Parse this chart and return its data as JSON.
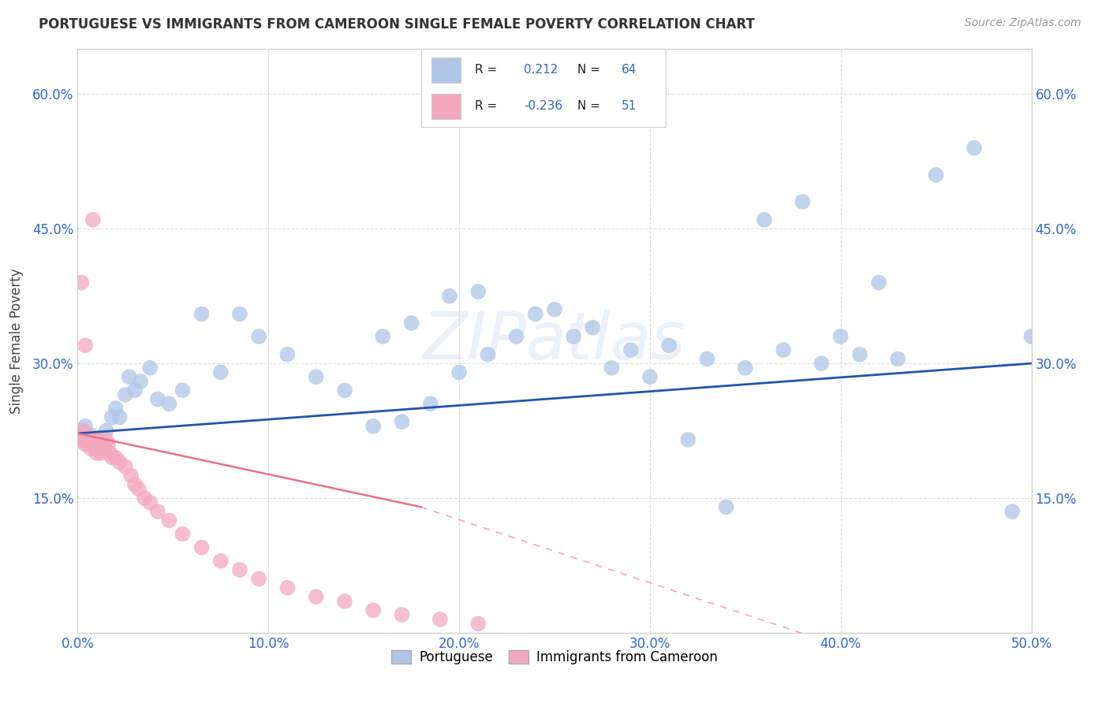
{
  "title": "PORTUGUESE VS IMMIGRANTS FROM CAMEROON SINGLE FEMALE POVERTY CORRELATION CHART",
  "source": "Source: ZipAtlas.com",
  "ylabel_label": "Single Female Poverty",
  "xlim": [
    0.0,
    0.5
  ],
  "ylim": [
    0.0,
    0.65
  ],
  "xticks": [
    0.0,
    0.1,
    0.2,
    0.3,
    0.4,
    0.5
  ],
  "yticks": [
    0.0,
    0.15,
    0.3,
    0.45,
    0.6
  ],
  "ytick_labels": [
    "",
    "15.0%",
    "30.0%",
    "45.0%",
    "60.0%"
  ],
  "xtick_labels": [
    "0.0%",
    "10.0%",
    "20.0%",
    "30.0%",
    "40.0%",
    "50.0%"
  ],
  "blue_color": "#aec6e8",
  "pink_color": "#f4a8c0",
  "line_blue": "#2255aa",
  "line_pink": "#e8708a",
  "portuguese_R": 0.212,
  "portuguese_N": 64,
  "cameroon_R": -0.236,
  "cameroon_N": 51,
  "legend_label1": "Portuguese",
  "legend_label2": "Immigrants from Cameroon",
  "watermark": "ZIPatlas",
  "portuguese_x": [
    0.001,
    0.002,
    0.003,
    0.004,
    0.005,
    0.006,
    0.007,
    0.008,
    0.01,
    0.011,
    0.012,
    0.015,
    0.018,
    0.02,
    0.022,
    0.025,
    0.027,
    0.03,
    0.033,
    0.038,
    0.042,
    0.048,
    0.055,
    0.065,
    0.075,
    0.085,
    0.095,
    0.11,
    0.125,
    0.14,
    0.155,
    0.17,
    0.185,
    0.2,
    0.215,
    0.23,
    0.25,
    0.27,
    0.29,
    0.31,
    0.33,
    0.35,
    0.37,
    0.39,
    0.41,
    0.43,
    0.45,
    0.47,
    0.49,
    0.5,
    0.16,
    0.175,
    0.195,
    0.21,
    0.24,
    0.26,
    0.28,
    0.3,
    0.32,
    0.34,
    0.36,
    0.38,
    0.4,
    0.42
  ],
  "portuguese_y": [
    0.22,
    0.225,
    0.215,
    0.23,
    0.22,
    0.215,
    0.22,
    0.215,
    0.215,
    0.21,
    0.218,
    0.225,
    0.24,
    0.25,
    0.24,
    0.265,
    0.285,
    0.27,
    0.28,
    0.295,
    0.26,
    0.255,
    0.27,
    0.355,
    0.29,
    0.355,
    0.33,
    0.31,
    0.285,
    0.27,
    0.23,
    0.235,
    0.255,
    0.29,
    0.31,
    0.33,
    0.36,
    0.34,
    0.315,
    0.32,
    0.305,
    0.295,
    0.315,
    0.3,
    0.31,
    0.305,
    0.51,
    0.54,
    0.135,
    0.33,
    0.33,
    0.345,
    0.375,
    0.38,
    0.355,
    0.33,
    0.295,
    0.285,
    0.215,
    0.14,
    0.46,
    0.48,
    0.33,
    0.39
  ],
  "cameroon_x": [
    0.001,
    0.001,
    0.002,
    0.003,
    0.003,
    0.004,
    0.005,
    0.005,
    0.006,
    0.006,
    0.007,
    0.007,
    0.008,
    0.009,
    0.009,
    0.01,
    0.01,
    0.011,
    0.011,
    0.012,
    0.013,
    0.014,
    0.015,
    0.016,
    0.017,
    0.018,
    0.02,
    0.022,
    0.025,
    0.028,
    0.03,
    0.032,
    0.035,
    0.038,
    0.042,
    0.048,
    0.055,
    0.065,
    0.075,
    0.085,
    0.095,
    0.11,
    0.125,
    0.14,
    0.155,
    0.17,
    0.19,
    0.21,
    0.002,
    0.004,
    0.008
  ],
  "cameroon_y": [
    0.22,
    0.215,
    0.22,
    0.215,
    0.225,
    0.21,
    0.215,
    0.22,
    0.215,
    0.21,
    0.215,
    0.205,
    0.215,
    0.21,
    0.215,
    0.21,
    0.2,
    0.205,
    0.215,
    0.2,
    0.21,
    0.205,
    0.215,
    0.21,
    0.2,
    0.195,
    0.195,
    0.19,
    0.185,
    0.175,
    0.165,
    0.16,
    0.15,
    0.145,
    0.135,
    0.125,
    0.11,
    0.095,
    0.08,
    0.07,
    0.06,
    0.05,
    0.04,
    0.035,
    0.025,
    0.02,
    0.015,
    0.01,
    0.39,
    0.32,
    0.46
  ],
  "background_color": "#ffffff",
  "grid_color": "#dddddd"
}
